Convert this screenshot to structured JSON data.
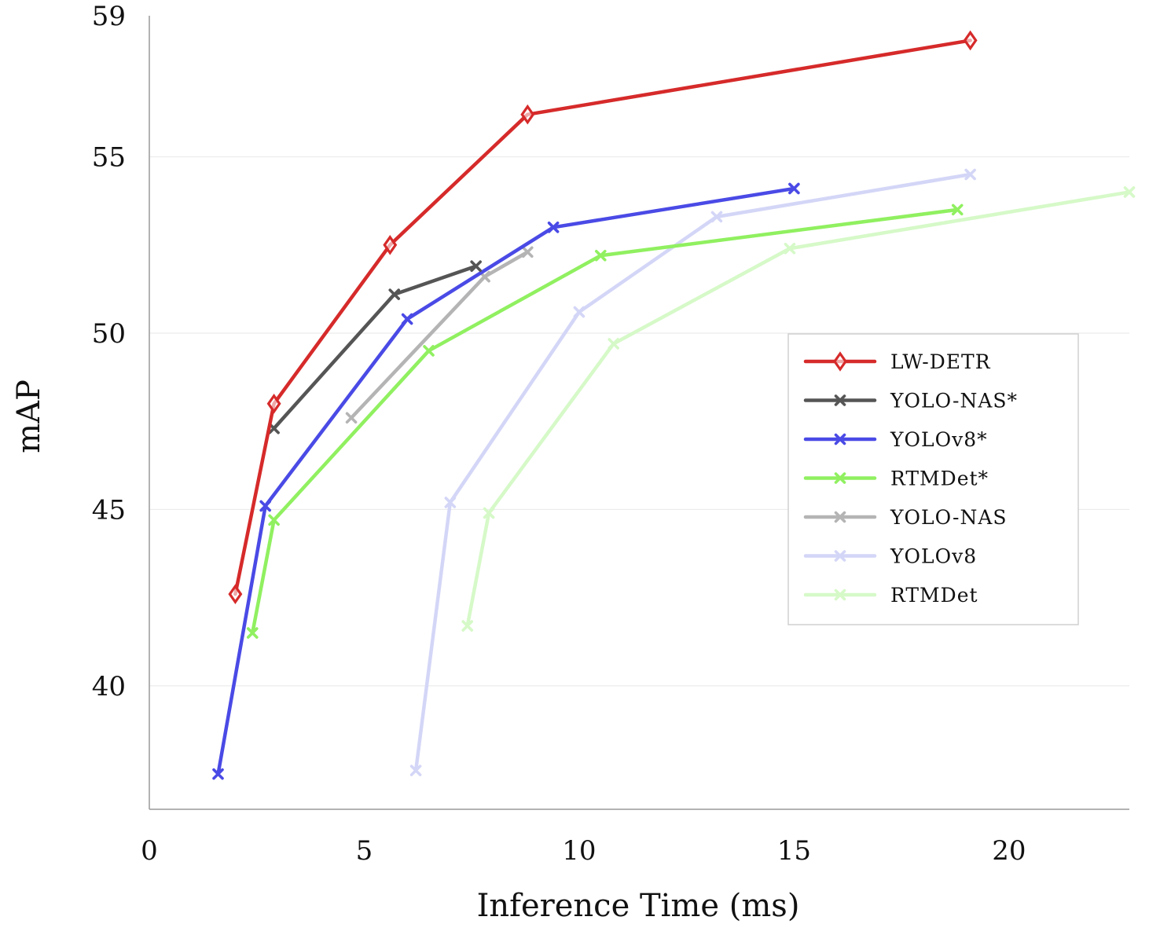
{
  "chart_data": {
    "type": "line",
    "title": "",
    "xlabel": "Inference Time (ms)",
    "ylabel": "mAP",
    "xlim": [
      0,
      22.8
    ],
    "ylim": [
      36.5,
      59
    ],
    "xticks": [
      0,
      5,
      10,
      15,
      20
    ],
    "yticks": [
      40,
      45,
      50,
      55,
      59
    ],
    "grid": true,
    "legend_position": "right",
    "series": [
      {
        "name": "YOLO-NAS",
        "color": "#b4b4b4",
        "marker": "x",
        "x": [
          4.7,
          7.8,
          8.8
        ],
        "y": [
          47.6,
          51.6,
          52.3
        ]
      },
      {
        "name": "YOLOv8",
        "color": "#d4d6f7",
        "marker": "x",
        "x": [
          6.2,
          7.0,
          10.0,
          13.2,
          19.1
        ],
        "y": [
          37.6,
          45.2,
          50.6,
          53.3,
          54.5
        ]
      },
      {
        "name": "RTMDet",
        "color": "#d6f9c8",
        "marker": "x",
        "x": [
          7.4,
          7.9,
          10.8,
          14.9,
          22.8
        ],
        "y": [
          41.7,
          44.9,
          49.7,
          52.4,
          54.0
        ]
      },
      {
        "name": "RTMDet*",
        "color": "#90f060",
        "marker": "x",
        "x": [
          2.4,
          2.9,
          6.5,
          10.5,
          18.8
        ],
        "y": [
          41.5,
          44.7,
          49.5,
          52.2,
          53.5
        ]
      },
      {
        "name": "YOLOv8*",
        "color": "#4a4ae6",
        "marker": "x",
        "x": [
          1.6,
          2.7,
          6.0,
          9.4,
          15.0
        ],
        "y": [
          37.5,
          45.1,
          50.4,
          53.0,
          54.1
        ]
      },
      {
        "name": "YOLO-NAS*",
        "color": "#555555",
        "marker": "x",
        "x": [
          2.9,
          5.7,
          7.6
        ],
        "y": [
          47.3,
          51.1,
          51.9
        ]
      },
      {
        "name": "LW-DETR",
        "color": "#d62a2a",
        "marker": "diamond",
        "x": [
          2.0,
          2.9,
          5.6,
          8.8,
          19.1
        ],
        "y": [
          42.6,
          48.0,
          52.5,
          56.2,
          58.3
        ]
      }
    ],
    "legend_order": [
      "LW-DETR",
      "YOLO-NAS*",
      "YOLOv8*",
      "RTMDet*",
      "YOLO-NAS",
      "YOLOv8",
      "RTMDet"
    ]
  }
}
